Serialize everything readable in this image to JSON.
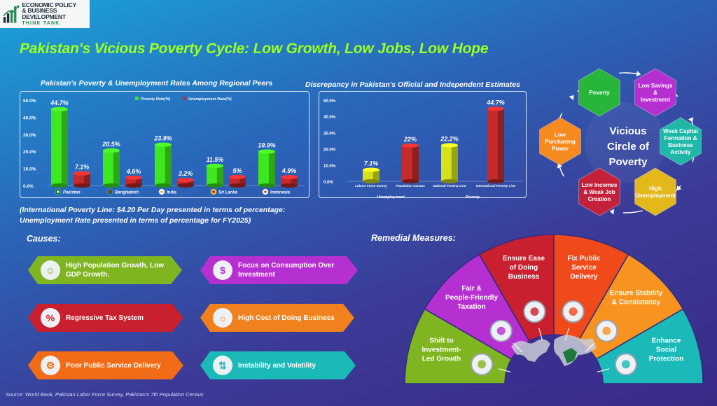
{
  "logo": {
    "line1": "ECONOMIC POLICY",
    "line2": "& BUSINESS DEVELOPMENT",
    "line3": "THINK TANK"
  },
  "title": "Pakistan's Vicious Poverty Cycle: Low Growth, Low Jobs, Low Hope",
  "chart1_title": "Pakistan's Poverty & Unemployment Rates Among Regional Peers",
  "chart2_title": "Discrepancy in Pakistan's Official and Independent Estimates",
  "chart_data": [
    {
      "type": "bar",
      "title": "Pakistan's Poverty & Unemployment Rates Among Regional Peers",
      "categories": [
        "Pakistan",
        "Bangladesh",
        "India",
        "Sri Lanka",
        "Indonesia"
      ],
      "series": [
        {
          "name": "Poverty Rate(%)",
          "values": [
            44.7,
            20.5,
            23.9,
            11.5,
            19.9
          ],
          "labels": [
            "44.7%",
            "20.5%",
            "23.9%",
            "11.5%",
            "19.9%"
          ],
          "color": "#3ee81e"
        },
        {
          "name": "Unemployment Rate(%)",
          "values": [
            7.1,
            4.6,
            3.2,
            5.0,
            4.9
          ],
          "labels": [
            "7.1%",
            "4.6%",
            "3.2%",
            "5%",
            "4.9%"
          ],
          "color": "#c62a2a"
        }
      ],
      "yticks": [
        "0.0%",
        "10.0%",
        "20.0%",
        "30.0%",
        "40.0%",
        "50.0%"
      ],
      "ylim": [
        0,
        50
      ],
      "legend": "top"
    },
    {
      "type": "bar",
      "title": "Discrepancy in Pakistan's Official and Independent Estimates",
      "categories": [
        "Labour Force Survey",
        "Population Census",
        "National Poverty Line",
        "International Poverty Line"
      ],
      "values": [
        7.1,
        22,
        22.2,
        44.7
      ],
      "labels": [
        "7.1%",
        "22%",
        "22.2%",
        "44.7%"
      ],
      "colors": [
        "#d3e21a",
        "#c62a2a",
        "#d3e21a",
        "#c62a2a"
      ],
      "groups": [
        "Unemployment",
        "Poverty"
      ],
      "yticks": [
        "0.0%",
        "10.0%",
        "20.0%",
        "30.0%",
        "40.0%",
        "50.0%"
      ],
      "ylim": [
        0,
        50
      ]
    }
  ],
  "note": {
    "line1": "(International Poverty Line: $4.20 Per Day presented in terms of percentage:",
    "line2": "Unemployment Rate presented in terms of percentage for FY2025)"
  },
  "cycle": {
    "center": [
      "Vicious",
      "Circle of",
      "Poverty"
    ],
    "nodes": [
      {
        "lines": [
          "Poverty"
        ],
        "color": "#27b53a"
      },
      {
        "lines": [
          "Low Savings",
          "&",
          "Investment"
        ],
        "color": "#b62fd0"
      },
      {
        "lines": [
          "Weak Capital",
          "Formation &",
          "Business",
          "Activity"
        ],
        "color": "#1fb8a8"
      },
      {
        "lines": [
          "High",
          "Unemployment"
        ],
        "color": "#e3b81b"
      },
      {
        "lines": [
          "Low Incomes",
          "& Weak Job",
          "Creation"
        ],
        "color": "#c4203a"
      },
      {
        "lines": [
          "Low",
          "Purchasing",
          "Power"
        ],
        "color": "#f58a1f"
      }
    ]
  },
  "causes_title": "Causes:",
  "causes": [
    {
      "label": "High Population Growth, Low GDP Growth.",
      "l1": "High Population Growth, Low",
      "l2": "GDP Growth.",
      "color": "#7fb521",
      "icon": "population-icon"
    },
    {
      "label": "Focus on Consumption Over Investment",
      "l1": "Focus on Consumption Over",
      "l2": "Investment",
      "color": "#b62fd0",
      "icon": "money-icon"
    },
    {
      "label": "Regressive Tax System",
      "l1": "Regressive Tax System",
      "l2": "",
      "color": "#c8202e",
      "icon": "tax-icon"
    },
    {
      "label": "High Cost of Doing Business",
      "l1": "High Cost of Doing Business",
      "l2": "",
      "color": "#f0811c",
      "icon": "idea-icon"
    },
    {
      "label": "Poor Public Service Delivery",
      "l1": "Poor Public Service Delivery",
      "l2": "",
      "color": "#f26c18",
      "icon": "service-icon"
    },
    {
      "label": "Instability and Volatility",
      "l1": "Instability and Volatility",
      "l2": "",
      "color": "#1cb9b9",
      "icon": "volatility-icon"
    }
  ],
  "remedies_title": "Remedial Measures:",
  "remedies": [
    {
      "lines": [
        "Shift to",
        "Investment-",
        "Led Growth"
      ],
      "color": "#7fb521",
      "icon": "investment-icon"
    },
    {
      "lines": [
        "Fair &",
        "People-Friendly",
        "Taxation"
      ],
      "color": "#b62fd0",
      "icon": "people-icon"
    },
    {
      "lines": [
        "Ensure Ease",
        "of Doing",
        "Business"
      ],
      "color": "#c8202e",
      "icon": "business-icon"
    },
    {
      "lines": [
        "Fix Public",
        "Service",
        "Delivery"
      ],
      "color": "#f04a1a",
      "icon": "service-hand-icon"
    },
    {
      "lines": [
        "Ensure Stability",
        "& Consistency"
      ],
      "color": "#f7931e",
      "icon": "stability-icon"
    },
    {
      "lines": [
        "Enhance",
        "Social",
        "Protection"
      ],
      "color": "#1cb9b9",
      "icon": "shield-icon"
    }
  ],
  "source": "Source: World Bank, Pakistan Labor Force Survey, Pakistan's 7th Population Census"
}
